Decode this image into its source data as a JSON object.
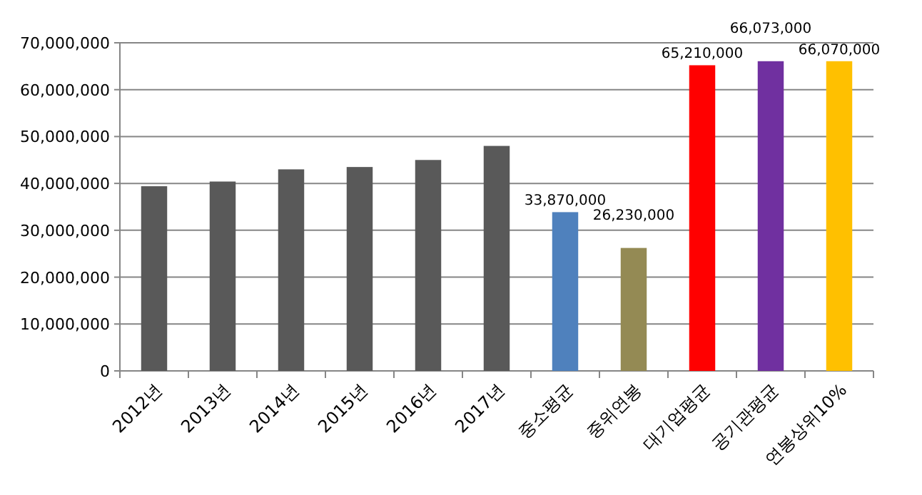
{
  "chart_data": {
    "type": "bar",
    "categories": [
      "2012년",
      "2013년",
      "2014년",
      "2015년",
      "2016년",
      "2017년",
      "중소평균",
      "중위연봉",
      "대기업평균",
      "공기관평균",
      "연봉상위10%"
    ],
    "values": [
      39400000,
      40400000,
      43000000,
      43500000,
      45000000,
      48000000,
      33870000,
      26230000,
      65210000,
      66073000,
      66070000
    ],
    "colors": [
      "#595959",
      "#595959",
      "#595959",
      "#595959",
      "#595959",
      "#595959",
      "#4f81bd",
      "#948a54",
      "#ff0000",
      "#7030a0",
      "#ffc000"
    ],
    "value_labels": [
      null,
      null,
      null,
      null,
      null,
      null,
      "33,870,000",
      "26,230,000",
      "65,210,000",
      "66,073,000",
      "66,070,000"
    ],
    "ylim": [
      0,
      70000000
    ],
    "yticks": [
      {
        "value": 0,
        "label": "0"
      },
      {
        "value": 10000000,
        "label": "10,000,000"
      },
      {
        "value": 20000000,
        "label": "20,000,000"
      },
      {
        "value": 30000000,
        "label": "30,000,000"
      },
      {
        "value": 40000000,
        "label": "40,000,000"
      },
      {
        "value": 50000000,
        "label": "50,000,000"
      },
      {
        "value": 60000000,
        "label": "60,000,000"
      },
      {
        "value": 70000000,
        "label": "70,000,000"
      }
    ],
    "grid": "y"
  }
}
